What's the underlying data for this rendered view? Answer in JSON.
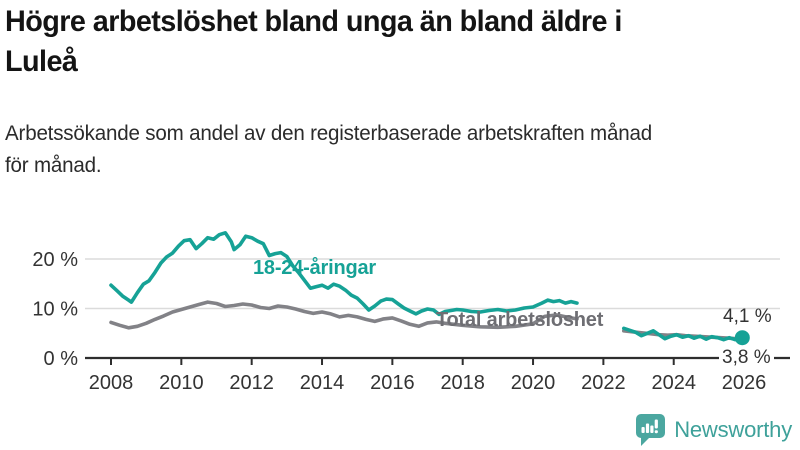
{
  "header": {
    "title_line1": "Högre arbetslöshet bland unga än bland äldre i",
    "title_line2": "Luleå",
    "subtitle_line1": "Arbetssökande som andel av den registerbaserade arbetskraften månad",
    "subtitle_line2": "för månad."
  },
  "footer": {
    "brand": "Newsworthy",
    "logo_color": "#4ba7a0"
  },
  "chart_data": {
    "type": "line",
    "title": "Högre arbetslöshet bland unga än bland äldre i Luleå",
    "subtitle": "Arbetssökande som andel av den registerbaserade arbetskraften månad för månad.",
    "xlabel": "",
    "ylabel": "",
    "xlim": [
      2007.25,
      2027.4
    ],
    "ylim": [
      0,
      33
    ],
    "grid": "horizontal",
    "grid_color": "#dbdbdb",
    "axis_color": "#2e2e2e",
    "tick_text_color": "#333333",
    "y_ticks": [
      {
        "value": 0,
        "label": "0 %"
      },
      {
        "value": 10,
        "label": "10 %"
      },
      {
        "value": 20,
        "label": "20 %"
      }
    ],
    "x_ticks": [
      {
        "value": 2008,
        "label": "2008"
      },
      {
        "value": 2010,
        "label": "2010"
      },
      {
        "value": 2012,
        "label": "2012"
      },
      {
        "value": 2014,
        "label": "2014"
      },
      {
        "value": 2016,
        "label": "2016"
      },
      {
        "value": 2018,
        "label": "2018"
      },
      {
        "value": 2020,
        "label": "2020"
      },
      {
        "value": 2022,
        "label": "2022"
      },
      {
        "value": 2024,
        "label": "2024"
      },
      {
        "value": 2026,
        "label": "2026"
      }
    ],
    "series": [
      {
        "name": "18-24-åringar",
        "color": "#16a296",
        "end_label": "4,1 %",
        "end_value": 4.1,
        "end_dot": true,
        "segments": [
          [
            [
              2008.0,
              14.7
            ],
            [
              2008.17,
              13.6
            ],
            [
              2008.33,
              12.5
            ],
            [
              2008.5,
              11.7
            ],
            [
              2008.58,
              11.3
            ],
            [
              2008.75,
              13.2
            ],
            [
              2008.92,
              14.9
            ],
            [
              2009.08,
              15.6
            ],
            [
              2009.25,
              17.3
            ],
            [
              2009.42,
              19.2
            ],
            [
              2009.58,
              20.4
            ],
            [
              2009.75,
              21.2
            ],
            [
              2009.92,
              22.6
            ],
            [
              2010.08,
              23.7
            ],
            [
              2010.25,
              23.9
            ],
            [
              2010.42,
              22.1
            ],
            [
              2010.58,
              23.1
            ],
            [
              2010.75,
              24.3
            ],
            [
              2010.92,
              24.0
            ],
            [
              2011.08,
              24.9
            ],
            [
              2011.25,
              25.3
            ],
            [
              2011.42,
              23.5
            ],
            [
              2011.5,
              21.9
            ],
            [
              2011.67,
              22.9
            ],
            [
              2011.83,
              24.6
            ],
            [
              2012.0,
              24.3
            ],
            [
              2012.17,
              23.6
            ],
            [
              2012.33,
              23.1
            ],
            [
              2012.5,
              20.7
            ],
            [
              2012.67,
              21.1
            ],
            [
              2012.83,
              21.3
            ],
            [
              2013.0,
              20.5
            ],
            [
              2013.17,
              18.6
            ],
            [
              2013.33,
              17.3
            ],
            [
              2013.5,
              15.7
            ],
            [
              2013.67,
              14.1
            ],
            [
              2013.83,
              14.4
            ],
            [
              2014.0,
              14.7
            ],
            [
              2014.17,
              14.1
            ],
            [
              2014.33,
              14.9
            ],
            [
              2014.5,
              14.5
            ],
            [
              2014.67,
              13.7
            ],
            [
              2014.83,
              12.7
            ],
            [
              2015.0,
              12.1
            ],
            [
              2015.17,
              10.9
            ],
            [
              2015.33,
              9.7
            ],
            [
              2015.5,
              10.5
            ],
            [
              2015.67,
              11.5
            ],
            [
              2015.83,
              11.9
            ],
            [
              2016.0,
              11.8
            ],
            [
              2016.17,
              10.9
            ],
            [
              2016.33,
              10.1
            ],
            [
              2016.5,
              9.5
            ],
            [
              2016.67,
              8.9
            ],
            [
              2016.83,
              9.5
            ],
            [
              2017.0,
              9.9
            ],
            [
              2017.17,
              9.7
            ],
            [
              2017.33,
              8.8
            ],
            [
              2017.5,
              9.4
            ],
            [
              2017.67,
              9.6
            ],
            [
              2017.83,
              9.8
            ],
            [
              2018.0,
              9.7
            ],
            [
              2018.25,
              9.4
            ],
            [
              2018.5,
              9.3
            ],
            [
              2018.75,
              9.6
            ],
            [
              2019.0,
              9.8
            ],
            [
              2019.25,
              9.5
            ],
            [
              2019.5,
              9.7
            ],
            [
              2019.75,
              10.1
            ],
            [
              2020.0,
              10.3
            ],
            [
              2020.25,
              11.1
            ],
            [
              2020.42,
              11.7
            ],
            [
              2020.58,
              11.4
            ],
            [
              2020.75,
              11.6
            ],
            [
              2020.92,
              11.1
            ],
            [
              2021.08,
              11.4
            ],
            [
              2021.25,
              11.1
            ]
          ],
          [
            [
              2022.58,
              6.0
            ],
            [
              2022.75,
              5.6
            ],
            [
              2022.92,
              5.2
            ],
            [
              2023.08,
              4.5
            ],
            [
              2023.25,
              5.0
            ],
            [
              2023.42,
              5.5
            ],
            [
              2023.58,
              4.7
            ],
            [
              2023.75,
              3.9
            ],
            [
              2023.92,
              4.4
            ],
            [
              2024.08,
              4.7
            ],
            [
              2024.25,
              4.2
            ],
            [
              2024.42,
              4.5
            ],
            [
              2024.58,
              4.0
            ],
            [
              2024.75,
              4.4
            ],
            [
              2024.92,
              3.8
            ],
            [
              2025.08,
              4.3
            ],
            [
              2025.25,
              4.1
            ],
            [
              2025.42,
              3.7
            ],
            [
              2025.58,
              4.1
            ],
            [
              2025.75,
              3.7
            ],
            [
              2025.95,
              4.1
            ]
          ]
        ]
      },
      {
        "name": "Total arbetslöshet",
        "color": "#828287",
        "end_label": "3,8 %",
        "end_value": 3.8,
        "end_dot": false,
        "segments": [
          [
            [
              2008.0,
              7.2
            ],
            [
              2008.25,
              6.6
            ],
            [
              2008.5,
              6.1
            ],
            [
              2008.75,
              6.4
            ],
            [
              2009.0,
              7.0
            ],
            [
              2009.25,
              7.8
            ],
            [
              2009.5,
              8.5
            ],
            [
              2009.75,
              9.3
            ],
            [
              2010.0,
              9.8
            ],
            [
              2010.25,
              10.3
            ],
            [
              2010.5,
              10.8
            ],
            [
              2010.75,
              11.3
            ],
            [
              2011.0,
              11.0
            ],
            [
              2011.25,
              10.4
            ],
            [
              2011.5,
              10.6
            ],
            [
              2011.75,
              10.9
            ],
            [
              2012.0,
              10.7
            ],
            [
              2012.25,
              10.2
            ],
            [
              2012.5,
              10.0
            ],
            [
              2012.75,
              10.5
            ],
            [
              2013.0,
              10.3
            ],
            [
              2013.25,
              9.9
            ],
            [
              2013.5,
              9.4
            ],
            [
              2013.75,
              9.0
            ],
            [
              2014.0,
              9.3
            ],
            [
              2014.25,
              8.9
            ],
            [
              2014.5,
              8.3
            ],
            [
              2014.75,
              8.6
            ],
            [
              2015.0,
              8.3
            ],
            [
              2015.25,
              7.8
            ],
            [
              2015.5,
              7.4
            ],
            [
              2015.75,
              7.9
            ],
            [
              2016.0,
              8.1
            ],
            [
              2016.25,
              7.5
            ],
            [
              2016.5,
              6.8
            ],
            [
              2016.75,
              6.4
            ],
            [
              2017.0,
              7.1
            ],
            [
              2017.25,
              7.3
            ],
            [
              2017.5,
              7.0
            ],
            [
              2017.75,
              6.8
            ],
            [
              2018.0,
              6.6
            ],
            [
              2018.5,
              6.3
            ],
            [
              2019.0,
              6.2
            ],
            [
              2019.5,
              6.4
            ],
            [
              2020.0,
              6.9
            ],
            [
              2020.33,
              8.4
            ],
            [
              2020.67,
              8.7
            ],
            [
              2021.0,
              8.2
            ],
            [
              2021.25,
              7.9
            ]
          ],
          [
            [
              2022.58,
              5.5
            ],
            [
              2022.83,
              5.3
            ],
            [
              2023.08,
              5.1
            ],
            [
              2023.33,
              4.9
            ],
            [
              2023.58,
              4.7
            ],
            [
              2023.83,
              4.6
            ],
            [
              2024.08,
              4.7
            ],
            [
              2024.33,
              4.5
            ],
            [
              2024.58,
              4.4
            ],
            [
              2024.83,
              4.3
            ],
            [
              2025.08,
              4.2
            ],
            [
              2025.33,
              4.1
            ],
            [
              2025.58,
              4.0
            ],
            [
              2025.95,
              3.8
            ]
          ]
        ]
      }
    ]
  }
}
